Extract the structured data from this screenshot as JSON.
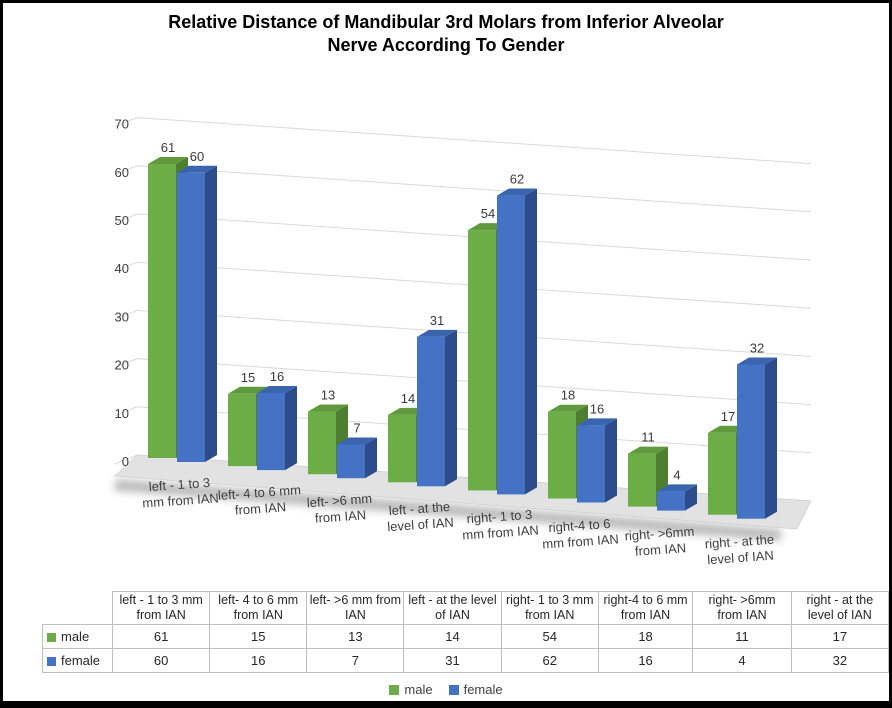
{
  "title": {
    "lines": [
      "Relative Distance of Mandibular 3rd Molars from Inferior Alveolar",
      "Nerve According To Gender"
    ],
    "full_text": "Relative Distance of Mandibular 3rd Molars from Inferior Alveolar Nerve According To Gender"
  },
  "chart_data": {
    "type": "bar",
    "subtype": "3d-clustered-column",
    "title": "Relative Distance of Mandibular 3rd Molars from Inferior Alveolar Nerve According To Gender",
    "categories": [
      "left - 1 to 3 mm from IAN",
      "left- 4 to 6 mm from IAN",
      "left- >6 mm from IAN",
      "left - at the level of IAN",
      "right- 1 to 3 mm from IAN",
      "right-4 to 6 mm from IAN",
      "right- >6mm from IAN",
      "right - at the level of IAN"
    ],
    "series": [
      {
        "name": "male",
        "values": [
          61,
          15,
          13,
          14,
          54,
          18,
          11,
          17
        ],
        "color": "#6CAD47",
        "color_top": "#609A3C",
        "color_side": "#4E7E30"
      },
      {
        "name": "female",
        "values": [
          60,
          16,
          7,
          31,
          62,
          16,
          4,
          32
        ],
        "color": "#4472C4",
        "color_top": "#3B64AE",
        "color_side": "#2D4C8C"
      }
    ],
    "xlabel": "",
    "ylabel": "",
    "ylim": [
      0,
      70
    ],
    "yticks": [
      0,
      10,
      20,
      30,
      40,
      50,
      60,
      70
    ],
    "grid": true,
    "value_labels": true,
    "legend_position": "bottom"
  },
  "colors": {
    "gridline": "#d9d9d9",
    "floor_light": "#e2e2e2",
    "floor_dark": "#c9c9c9",
    "shadow": "#9a9a9a",
    "axis_text": "#3f3f3f",
    "table_border": "#bfbfbf"
  },
  "legend": {
    "items": [
      {
        "label": "male",
        "color": "#6CAD47"
      },
      {
        "label": "female",
        "color": "#4472C4"
      }
    ]
  }
}
